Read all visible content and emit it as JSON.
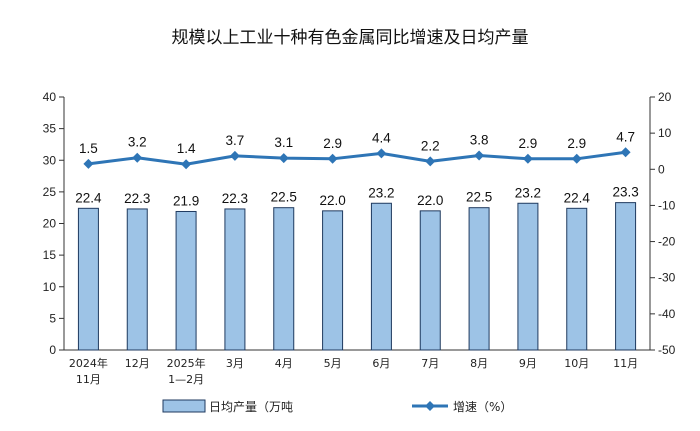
{
  "chart_data": {
    "type": "bar",
    "title": "规模以上工业十种有色金属同比增速及日均产量",
    "categories": [
      [
        "2024年",
        "11月"
      ],
      [
        "12月"
      ],
      [
        "2025年",
        "1—2月"
      ],
      [
        "3月"
      ],
      [
        "4月"
      ],
      [
        "5月"
      ],
      [
        "6月"
      ],
      [
        "7月"
      ],
      [
        "8月"
      ],
      [
        "9月"
      ],
      [
        "10月"
      ],
      [
        "11月"
      ]
    ],
    "series": [
      {
        "name": "日均产量（万吨",
        "type": "bar",
        "axis": "left",
        "values": [
          22.4,
          22.3,
          21.9,
          22.3,
          22.5,
          22.0,
          23.2,
          22.0,
          22.5,
          23.2,
          22.4,
          23.3
        ],
        "labels": [
          "22.4",
          "22.3",
          "21.9",
          "22.3",
          "22.5",
          "22.0",
          "23.2",
          "22.0",
          "22.5",
          "23.2",
          "22.4",
          "23.3"
        ],
        "color": "#9dc3e6",
        "border": "#1f3a5f"
      },
      {
        "name": "增速（%）",
        "type": "line",
        "axis": "right",
        "values": [
          1.5,
          3.2,
          1.4,
          3.7,
          3.1,
          2.9,
          4.4,
          2.2,
          3.8,
          2.9,
          2.9,
          4.7
        ],
        "labels": [
          "1.5",
          "3.2",
          "1.4",
          "3.7",
          "3.1",
          "2.9",
          "4.4",
          "2.2",
          "3.8",
          "2.9",
          "2.9",
          "4.7"
        ],
        "color": "#2e75b6"
      }
    ],
    "y_left": {
      "min": 0,
      "max": 40,
      "ticks": [
        "0",
        "5",
        "10",
        "15",
        "20",
        "25",
        "30",
        "35",
        "40"
      ]
    },
    "y_right": {
      "min": -50,
      "max": 20,
      "ticks": [
        "-50",
        "-40",
        "-30",
        "-20",
        "-10",
        "0",
        "10",
        "20"
      ]
    },
    "grid": false,
    "legend_position": "bottom"
  }
}
